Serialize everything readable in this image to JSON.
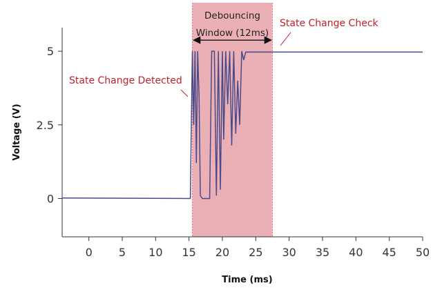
{
  "chart_data": {
    "type": "line",
    "xlabel": "Time (ms)",
    "ylabel": "Voltage (V)",
    "xlim": [
      -4,
      50
    ],
    "ylim": [
      -1.3,
      5.8
    ],
    "x_ticks": [
      0,
      5,
      10,
      15,
      20,
      25,
      30,
      35,
      40,
      45,
      50
    ],
    "x_tick_labels": [
      "0",
      "5",
      "10",
      "15",
      "20",
      "25",
      "30",
      "35",
      "40",
      "45",
      "50"
    ],
    "y_ticks": [
      0,
      2.5,
      5
    ],
    "y_tick_labels": [
      "0",
      "2.5",
      "5"
    ],
    "grid": false,
    "series": [
      {
        "color": "#4a4a8a",
        "x": [
          -4,
          15.2,
          15.5,
          15.7,
          15.9,
          16.1,
          16.3,
          16.5,
          16.7,
          17.0,
          18.1,
          18.4,
          18.8,
          19.1,
          19.4,
          19.7,
          20.0,
          20.2,
          20.5,
          20.8,
          21.1,
          21.4,
          21.7,
          22.0,
          22.3,
          22.6,
          22.9,
          23.2,
          23.5,
          50
        ],
        "values": [
          0.02,
          0.0,
          5.0,
          2.5,
          5.0,
          1.2,
          5.0,
          3.5,
          0.1,
          0.0,
          0.0,
          5.0,
          5.0,
          0.1,
          5.0,
          0.3,
          5.0,
          2.0,
          5.0,
          3.2,
          5.0,
          1.8,
          5.0,
          2.2,
          4.0,
          2.5,
          5.0,
          4.7,
          4.97,
          4.97
        ]
      }
    ],
    "shaded_region": {
      "x": [
        15.5,
        27.5
      ],
      "color": "#e8a4aa"
    },
    "annotations": {
      "state_change_detected": "State Change Detected",
      "state_change_check": "State Change Check",
      "window_line1": "Debouncing",
      "window_line2": "Window (12ms)"
    },
    "colors": {
      "annotation": "#c0202a",
      "line": "#4a4a8a",
      "region_fill": "#ebb0b5",
      "region_border": "#d97a85"
    }
  }
}
